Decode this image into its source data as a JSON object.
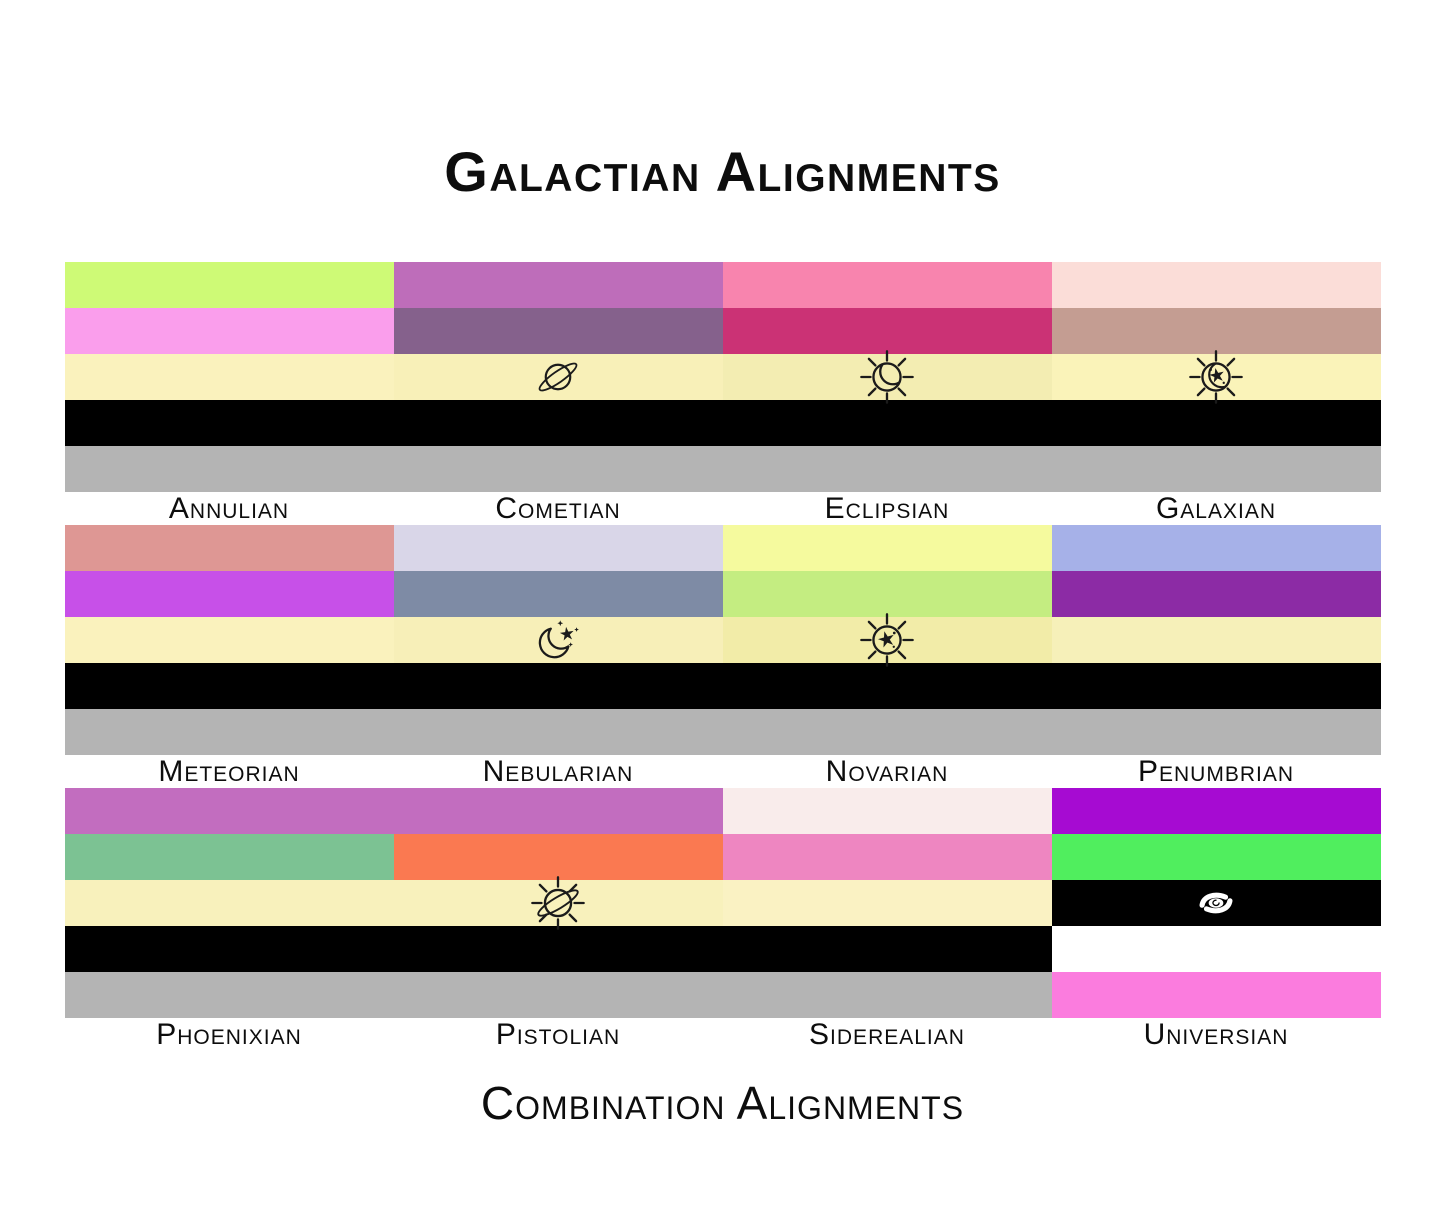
{
  "title": "Galactian Alignments",
  "subtitle": "Combination Alignments",
  "shared_colors": {
    "cream": "#F7F0B8",
    "black": "#000000",
    "gray": "#B4B4B4",
    "white": "#FFFFFF",
    "background": "#FFFFFF",
    "icon_ink": "#1B1B1B"
  },
  "flags": [
    {
      "name": "Annulian",
      "icon": null,
      "icon_color": null,
      "icon_stripe_index": null,
      "stripes": [
        "#CEFA76",
        "#FA9EEC",
        "#FAF2BD",
        "#000000",
        "#B4B4B4"
      ]
    },
    {
      "name": "Cometian",
      "icon": "saturn",
      "icon_color": "#1B1B1B",
      "icon_stripe_index": 2,
      "stripes": [
        "#BE6DBA",
        "#85618C",
        "#F8F0B8",
        "#000000",
        "#B4B4B4"
      ]
    },
    {
      "name": "Eclipsian",
      "icon": "eclipse-sun",
      "icon_color": "#1B1B1B",
      "icon_stripe_index": 2,
      "stripes": [
        "#F884AE",
        "#CB3275",
        "#F3EDB2",
        "#000000",
        "#B4B4B4"
      ]
    },
    {
      "name": "Galaxian",
      "icon": "star-crescent-sun",
      "icon_color": "#1B1B1B",
      "icon_stripe_index": 2,
      "stripes": [
        "#FBDDD8",
        "#C49D92",
        "#FAF3B9",
        "#000000",
        "#B4B4B4"
      ]
    },
    {
      "name": "Meteorian",
      "icon": null,
      "icon_color": null,
      "icon_stripe_index": null,
      "stripes": [
        "#DE9794",
        "#C750E8",
        "#FAF2BD",
        "#000000",
        "#B4B4B4"
      ]
    },
    {
      "name": "Nebularian",
      "icon": "star-crescent",
      "icon_color": "#1B1B1B",
      "icon_stripe_index": 2,
      "stripes": [
        "#D9D6E8",
        "#7E8BA5",
        "#F7EFB8",
        "#000000",
        "#B4B4B4"
      ]
    },
    {
      "name": "Novarian",
      "icon": "star-sun",
      "icon_color": "#1B1B1B",
      "icon_stripe_index": 2,
      "stripes": [
        "#F5FA9E",
        "#C4ED81",
        "#F2ECA8",
        "#000000",
        "#B4B4B4"
      ]
    },
    {
      "name": "Penumbrian",
      "icon": null,
      "icon_color": null,
      "icon_stripe_index": null,
      "stripes": [
        "#A6B1E8",
        "#8C2BA5",
        "#F6F0B9",
        "#000000",
        "#B4B4B4"
      ]
    },
    {
      "name": "Phoenixian",
      "icon": null,
      "icon_color": null,
      "icon_stripe_index": null,
      "stripes": [
        "#C26DBF",
        "#7CC293",
        "#F8F1BC",
        "#000000",
        "#B4B4B4"
      ]
    },
    {
      "name": "Pistolian",
      "icon": "saturn-sun",
      "icon_color": "#1B1B1B",
      "icon_stripe_index": 2,
      "stripes": [
        "#C26DBF",
        "#FA7951",
        "#F8F1BC",
        "#000000",
        "#B4B4B4"
      ]
    },
    {
      "name": "Siderealian",
      "icon": null,
      "icon_color": null,
      "icon_stripe_index": null,
      "stripes": [
        "#F9ECEB",
        "#EE86C1",
        "#FAF2C3",
        "#000000",
        "#B4B4B4"
      ]
    },
    {
      "name": "Universian",
      "icon": "galaxy-swirl",
      "icon_color": "#FFFFFF",
      "icon_stripe_index": 2,
      "stripes": [
        "#A60BD2",
        "#50EE5E",
        "#000000",
        "#FFFFFF",
        "#FB7CDE"
      ]
    }
  ]
}
